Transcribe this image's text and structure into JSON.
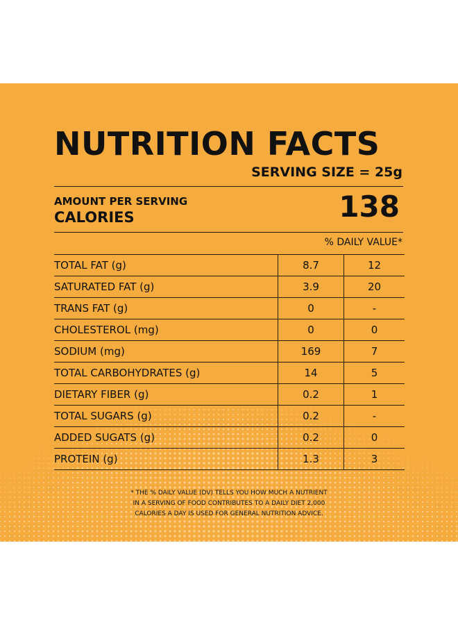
{
  "label": {
    "title": "NUTRITION FACTS",
    "serving_size": "SERVING SIZE = 25g",
    "amount_per_serving": "AMOUNT PER SERVING",
    "calories_label": "CALORIES",
    "calories_value": "138",
    "daily_value_header": "% DAILY VALUE*"
  },
  "nutrients": [
    {
      "name": "TOTAL FAT (g)",
      "amount": "8.7",
      "dv": "12"
    },
    {
      "name": "SATURATED FAT (g)",
      "amount": "3.9",
      "dv": "20"
    },
    {
      "name": "TRANS FAT (g)",
      "amount": "0",
      "dv": "-"
    },
    {
      "name": "CHOLESTEROL (mg)",
      "amount": "0",
      "dv": "0"
    },
    {
      "name": "SODIUM (mg)",
      "amount": "169",
      "dv": "7"
    },
    {
      "name": "TOTAL CARBOHYDRATES (g)",
      "amount": "14",
      "dv": "5"
    },
    {
      "name": "DIETARY FIBER (g)",
      "amount": "0.2",
      "dv": "1"
    },
    {
      "name": "TOTAL SUGARS (g)",
      "amount": "0.2",
      "dv": "-"
    },
    {
      "name": "ADDED SUGATS (g)",
      "amount": "0.2",
      "dv": "0"
    },
    {
      "name": "PROTEIN (g)",
      "amount": "1.3",
      "dv": "3"
    }
  ],
  "footnote": [
    "* THE % DAILY VALUE (DV) TELLS YOU HOW MUCH A NUTRIENT",
    "IN A SERVING OF FOOD CONTRIBUTES TO A DAILY DIET 2,000",
    "CALORIES A DAY IS USED FOR GENERAL NUTRITION ADVICE."
  ],
  "colors": {
    "background": "#f5ab3e",
    "text": "#111111",
    "dots": "#fbd9a2"
  }
}
